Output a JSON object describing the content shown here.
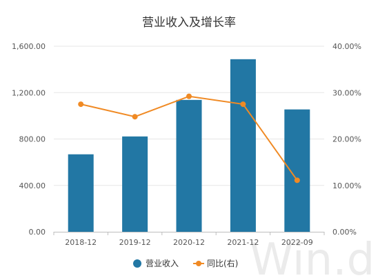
{
  "chart_data": {
    "type": "bar",
    "title": "营业收入及增长率",
    "categories": [
      "2018-12",
      "2019-12",
      "2020-12",
      "2021-12",
      "2022-09"
    ],
    "series": [
      {
        "name": "营业收入",
        "type": "bar",
        "axis": "left",
        "color": "#2277a4",
        "values": [
          668,
          822,
          1137,
          1488,
          1055
        ]
      },
      {
        "name": "同比(右)",
        "type": "line",
        "axis": "right",
        "color": "#f08a24",
        "values": [
          27.5,
          24.8,
          29.2,
          27.5,
          11.1
        ]
      }
    ],
    "y_left": {
      "min": 0,
      "max": 1600,
      "ticks": [
        "0.00",
        "400.00",
        "800.00",
        "1,200.00",
        "1,600.00"
      ]
    },
    "y_right": {
      "min": 0,
      "max": 40,
      "ticks": [
        "0.00%",
        "10.00%",
        "20.00%",
        "30.00%",
        "40.00%"
      ]
    },
    "grid": true,
    "legend_position": "bottom-center"
  },
  "watermark": "Win.d"
}
